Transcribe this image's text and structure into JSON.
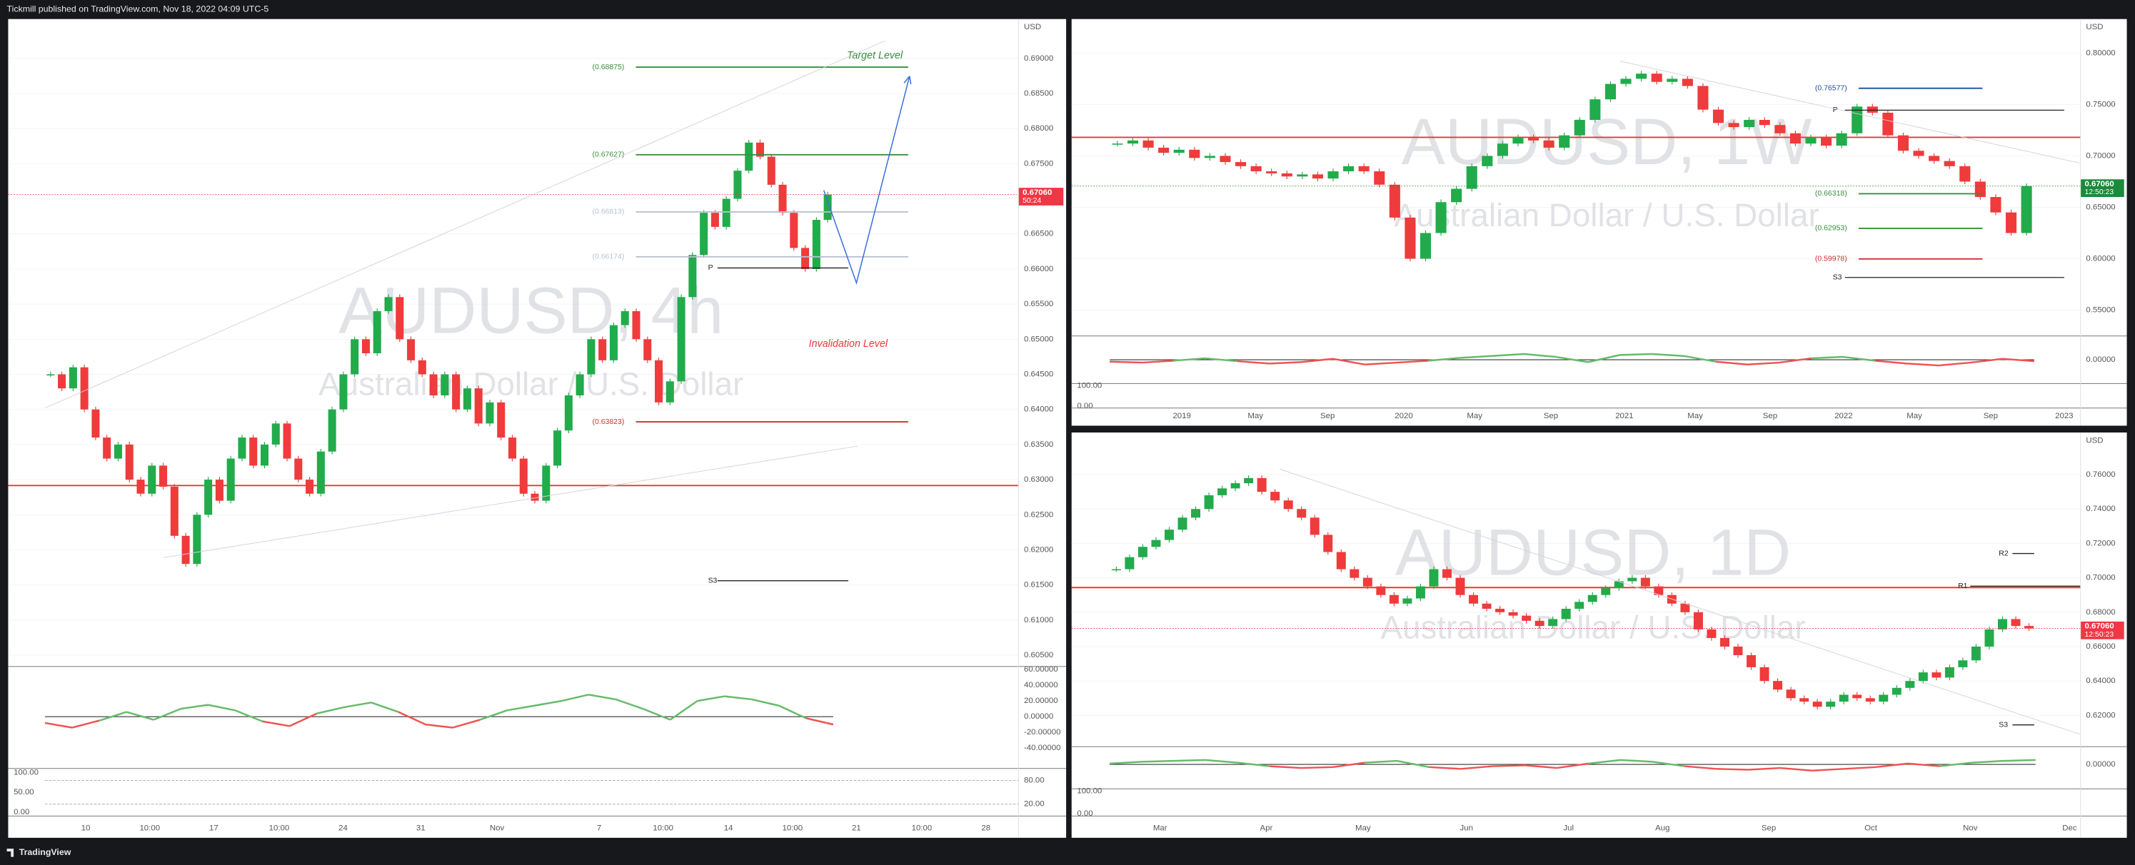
{
  "header": {
    "publisher": "Tickmill published on TradingView.com, Nov 18, 2022 04:09 UTC-5"
  },
  "footer": {
    "brand": "TradingView"
  },
  "chart_data": [
    {
      "type": "candlestick",
      "title": "AUDUSD, 4h",
      "subtitle": "Australian Dollar / U.S. Dollar",
      "currency": "USD",
      "up_color": "#22ab4b",
      "down_color": "#ef3b3b",
      "ylim": [
        0.6034,
        0.6956
      ],
      "yticks": [
        {
          "value": 0.605,
          "label": "0.60500"
        },
        {
          "value": 0.61,
          "label": "0.61000"
        },
        {
          "value": 0.615,
          "label": "0.61500"
        },
        {
          "value": 0.62,
          "label": "0.62000"
        },
        {
          "value": 0.625,
          "label": "0.62500"
        },
        {
          "value": 0.63,
          "label": "0.63000"
        },
        {
          "value": 0.635,
          "label": "0.63500"
        },
        {
          "value": 0.64,
          "label": "0.64000"
        },
        {
          "value": 0.645,
          "label": "0.64500"
        },
        {
          "value": 0.65,
          "label": "0.65000"
        },
        {
          "value": 0.655,
          "label": "0.65500"
        },
        {
          "value": 0.66,
          "label": "0.66000"
        },
        {
          "value": 0.665,
          "label": "0.66500"
        },
        {
          "value": 0.67,
          "label": "0.67000"
        },
        {
          "value": 0.675,
          "label": "0.67500"
        },
        {
          "value": 0.68,
          "label": "0.68000"
        },
        {
          "value": 0.685,
          "label": "0.68500"
        },
        {
          "value": 0.69,
          "label": "0.69000"
        }
      ],
      "values": [
        0.645,
        0.643,
        0.646,
        0.64,
        0.636,
        0.633,
        0.635,
        0.63,
        0.628,
        0.632,
        0.629,
        0.622,
        0.618,
        0.625,
        0.63,
        0.627,
        0.633,
        0.636,
        0.632,
        0.635,
        0.638,
        0.633,
        0.63,
        0.628,
        0.634,
        0.64,
        0.645,
        0.65,
        0.648,
        0.654,
        0.656,
        0.65,
        0.647,
        0.645,
        0.642,
        0.645,
        0.64,
        0.643,
        0.638,
        0.641,
        0.636,
        0.633,
        0.628,
        0.627,
        0.632,
        0.637,
        0.642,
        0.645,
        0.65,
        0.647,
        0.652,
        0.654,
        0.65,
        0.647,
        0.641,
        0.644,
        0.656,
        0.662,
        0.668,
        0.666,
        0.67,
        0.674,
        0.678,
        0.676,
        0.672,
        0.668,
        0.663,
        0.66,
        0.667,
        0.6706
      ],
      "last_price": {
        "value": 0.6706,
        "label": "0.67060",
        "color": "#f23645"
      },
      "countdown": "50:24",
      "levels": [
        {
          "value": 0.68875,
          "label": "(0.68875)",
          "color": "#388e3c"
        },
        {
          "value": 0.67627,
          "label": "(0.67627)",
          "color": "#388e3c"
        },
        {
          "value": 0.66813,
          "label": "(0.66813)",
          "color": "#b8c0d0"
        },
        {
          "value": 0.66174,
          "label": "(0.66174)",
          "color": "#b8c0d0"
        },
        {
          "value": 0.63823,
          "label": "(0.63823)",
          "color": "#d32f2f"
        }
      ],
      "pivots": [
        {
          "label": "P"
        },
        {
          "label": "S3"
        }
      ],
      "annotations": [
        {
          "text": "Target Level",
          "color": "#388e3c"
        },
        {
          "text": "Invalidation Level",
          "color": "#e53935"
        }
      ],
      "time_labels": [
        "10",
        "10:00",
        "17",
        "10:00",
        "24",
        "31",
        "Nov",
        "7",
        "10:00",
        "14",
        "10:00",
        "21",
        "10:00",
        "28"
      ],
      "osc": {
        "ylim": [
          -66,
          64
        ],
        "yticks": [
          {
            "value": 60,
            "label": "60.00000"
          },
          {
            "value": 40,
            "label": "40.00000"
          },
          {
            "value": 20,
            "label": "20.00000"
          },
          {
            "value": 0,
            "label": "0.00000"
          },
          {
            "value": -20,
            "label": "-20.00000"
          },
          {
            "value": -40,
            "label": "-40.00000"
          }
        ],
        "values": [
          -8,
          -14,
          -5,
          6,
          -4,
          10,
          15,
          8,
          -6,
          -12,
          4,
          12,
          18,
          6,
          -10,
          -14,
          -4,
          8,
          14,
          20,
          28,
          22,
          10,
          -4,
          20,
          26,
          22,
          14,
          -2,
          -10
        ],
        "up_color": "#66bb6a",
        "down_color": "#ef5350"
      },
      "stoch": {
        "ylim": [
          -10,
          110
        ],
        "yticks": [
          {
            "value": 100,
            "label": "100.00"
          },
          {
            "value": 50,
            "label": "50.00"
          },
          {
            "value": 0,
            "label": "0.00"
          }
        ],
        "bands": [
          {
            "value": 80,
            "label": "80.00"
          },
          {
            "value": 20,
            "label": "20.00"
          }
        ]
      }
    },
    {
      "type": "candlestick",
      "title": "AUDUSD, 1W",
      "subtitle": "Australian Dollar / U.S. Dollar",
      "currency": "USD",
      "up_color": "#22ab4b",
      "down_color": "#ef3b3b",
      "ylim": [
        0.5249,
        0.8331
      ],
      "yticks": [
        {
          "value": 0.55,
          "label": "0.55000"
        },
        {
          "value": 0.6,
          "label": "0.60000"
        },
        {
          "value": 0.65,
          "label": "0.65000"
        },
        {
          "value": 0.7,
          "label": "0.70000"
        },
        {
          "value": 0.75,
          "label": "0.75000"
        },
        {
          "value": 0.8,
          "label": "0.80000"
        }
      ],
      "values": [
        0.712,
        0.715,
        0.708,
        0.703,
        0.706,
        0.698,
        0.7,
        0.694,
        0.69,
        0.685,
        0.683,
        0.68,
        0.682,
        0.678,
        0.685,
        0.69,
        0.685,
        0.672,
        0.64,
        0.6,
        0.625,
        0.655,
        0.668,
        0.69,
        0.7,
        0.712,
        0.718,
        0.715,
        0.708,
        0.72,
        0.735,
        0.755,
        0.77,
        0.775,
        0.78,
        0.772,
        0.775,
        0.768,
        0.745,
        0.732,
        0.728,
        0.735,
        0.73,
        0.722,
        0.712,
        0.718,
        0.71,
        0.722,
        0.748,
        0.742,
        0.72,
        0.705,
        0.7,
        0.695,
        0.69,
        0.675,
        0.66,
        0.645,
        0.625,
        0.6706
      ],
      "last_price": {
        "value": 0.6706,
        "label": "0.67060",
        "color": "#1b8a3a"
      },
      "countdown": "12:50:23",
      "levels": [
        {
          "value": 0.76577,
          "label": "(0.76577)",
          "color": "#1e4fa0"
        },
        {
          "value": 0.66318,
          "label": "(0.66318)",
          "color": "#388e3c"
        },
        {
          "value": 0.62953,
          "label": "(0.62953)",
          "color": "#388e3c"
        },
        {
          "value": 0.59978,
          "label": "(0.59978)",
          "color": "#d32f2f"
        }
      ],
      "pivots": [
        {
          "label": "P"
        },
        {
          "label": "S3"
        }
      ],
      "annotations": [],
      "time_labels": [
        "2019",
        "May",
        "Sep",
        "2020",
        "May",
        "Sep",
        "2021",
        "May",
        "Sep",
        "2022",
        "May",
        "Sep",
        "2023"
      ],
      "osc": {
        "ylim": [
          -50,
          50
        ],
        "yticks": [
          {
            "value": 0,
            "label": "0.00000"
          }
        ],
        "values": [
          -4,
          -6,
          -2,
          3,
          -3,
          -8,
          -5,
          2,
          -10,
          -6,
          -2,
          4,
          8,
          12,
          6,
          -5,
          10,
          12,
          8,
          -4,
          -10,
          -6,
          3,
          6,
          -2,
          -8,
          -12,
          -6,
          2,
          -3
        ],
        "up_color": "#66bb6a",
        "down_color": "#ef5350"
      },
      "stoch": {
        "ylim": [
          -10,
          110
        ],
        "yticks": [
          {
            "value": 100,
            "label": "100.00"
          },
          {
            "value": 0,
            "label": "0.00"
          }
        ],
        "bands": []
      }
    },
    {
      "type": "candlestick",
      "title": "AUDUSD, 1D",
      "subtitle": "Australian Dollar / U.S. Dollar",
      "currency": "USD",
      "up_color": "#22ab4b",
      "down_color": "#ef3b3b",
      "ylim": [
        0.6018,
        0.7845
      ],
      "yticks": [
        {
          "value": 0.62,
          "label": "0.62000"
        },
        {
          "value": 0.64,
          "label": "0.64000"
        },
        {
          "value": 0.66,
          "label": "0.66000"
        },
        {
          "value": 0.68,
          "label": "0.68000"
        },
        {
          "value": 0.7,
          "label": "0.70000"
        },
        {
          "value": 0.72,
          "label": "0.72000"
        },
        {
          "value": 0.74,
          "label": "0.74000"
        },
        {
          "value": 0.76,
          "label": "0.76000"
        }
      ],
      "values": [
        0.705,
        0.712,
        0.718,
        0.722,
        0.728,
        0.735,
        0.74,
        0.748,
        0.752,
        0.755,
        0.758,
        0.75,
        0.745,
        0.74,
        0.735,
        0.725,
        0.715,
        0.705,
        0.7,
        0.695,
        0.69,
        0.685,
        0.688,
        0.695,
        0.705,
        0.7,
        0.69,
        0.685,
        0.682,
        0.68,
        0.678,
        0.675,
        0.672,
        0.676,
        0.682,
        0.686,
        0.69,
        0.694,
        0.698,
        0.7,
        0.695,
        0.69,
        0.685,
        0.68,
        0.67,
        0.665,
        0.66,
        0.655,
        0.648,
        0.64,
        0.635,
        0.63,
        0.628,
        0.625,
        0.628,
        0.632,
        0.63,
        0.628,
        0.632,
        0.636,
        0.64,
        0.645,
        0.642,
        0.648,
        0.652,
        0.66,
        0.67,
        0.676,
        0.672,
        0.6706
      ],
      "last_price": {
        "value": 0.6706,
        "label": "0.67060",
        "color": "#f23645"
      },
      "countdown": "12:50:23",
      "levels": [],
      "pivots": [
        {
          "label": "R2"
        },
        {
          "label": "R1"
        },
        {
          "label": "S3"
        }
      ],
      "annotations": [],
      "time_labels": [
        "Mar",
        "Apr",
        "May",
        "Jun",
        "Jul",
        "Aug",
        "Sep",
        "Oct",
        "Nov",
        "Dec"
      ],
      "osc": {
        "ylim": [
          -55,
          40
        ],
        "yticks": [
          {
            "value": 0,
            "label": "0.00000"
          }
        ],
        "values": [
          2,
          6,
          8,
          10,
          4,
          -4,
          -8,
          -6,
          4,
          8,
          -6,
          -10,
          -4,
          -2,
          -8,
          2,
          10,
          6,
          -4,
          -10,
          -12,
          -8,
          -14,
          -10,
          -6,
          2,
          -4,
          4,
          8,
          10
        ],
        "up_color": "#66bb6a",
        "down_color": "#ef5350"
      },
      "stoch": {
        "ylim": [
          -10,
          110
        ],
        "yticks": [
          {
            "value": 100,
            "label": "100.00"
          },
          {
            "value": 0,
            "label": "0.00"
          }
        ],
        "bands": []
      }
    }
  ]
}
